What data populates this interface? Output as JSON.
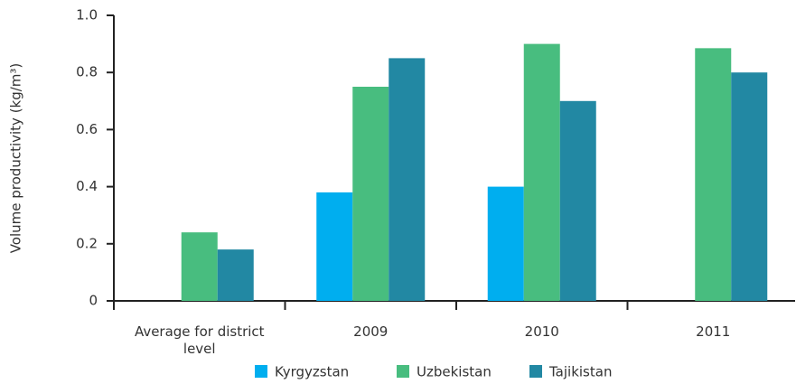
{
  "chart_data": {
    "type": "bar",
    "y_label": "Volume productivity (kg/m³)",
    "categories": [
      "Average for district level",
      "2009",
      "2010",
      "2011"
    ],
    "series": [
      {
        "name": "Kyrgyzstan",
        "color": "#00aeef",
        "values": [
          null,
          0.38,
          0.4,
          null
        ]
      },
      {
        "name": "Uzbekistan",
        "color": "#48bd7f",
        "values": [
          0.24,
          0.75,
          0.9,
          0.885
        ]
      },
      {
        "name": "Tajikistan",
        "color": "#2288a3",
        "values": [
          0.18,
          0.85,
          0.7,
          0.8
        ]
      }
    ],
    "ylim": [
      0,
      1
    ],
    "yticks": [
      0,
      0.2,
      0.4,
      0.6,
      0.8,
      {
        "value": 1,
        "label": "1.0"
      }
    ],
    "grid": false
  }
}
